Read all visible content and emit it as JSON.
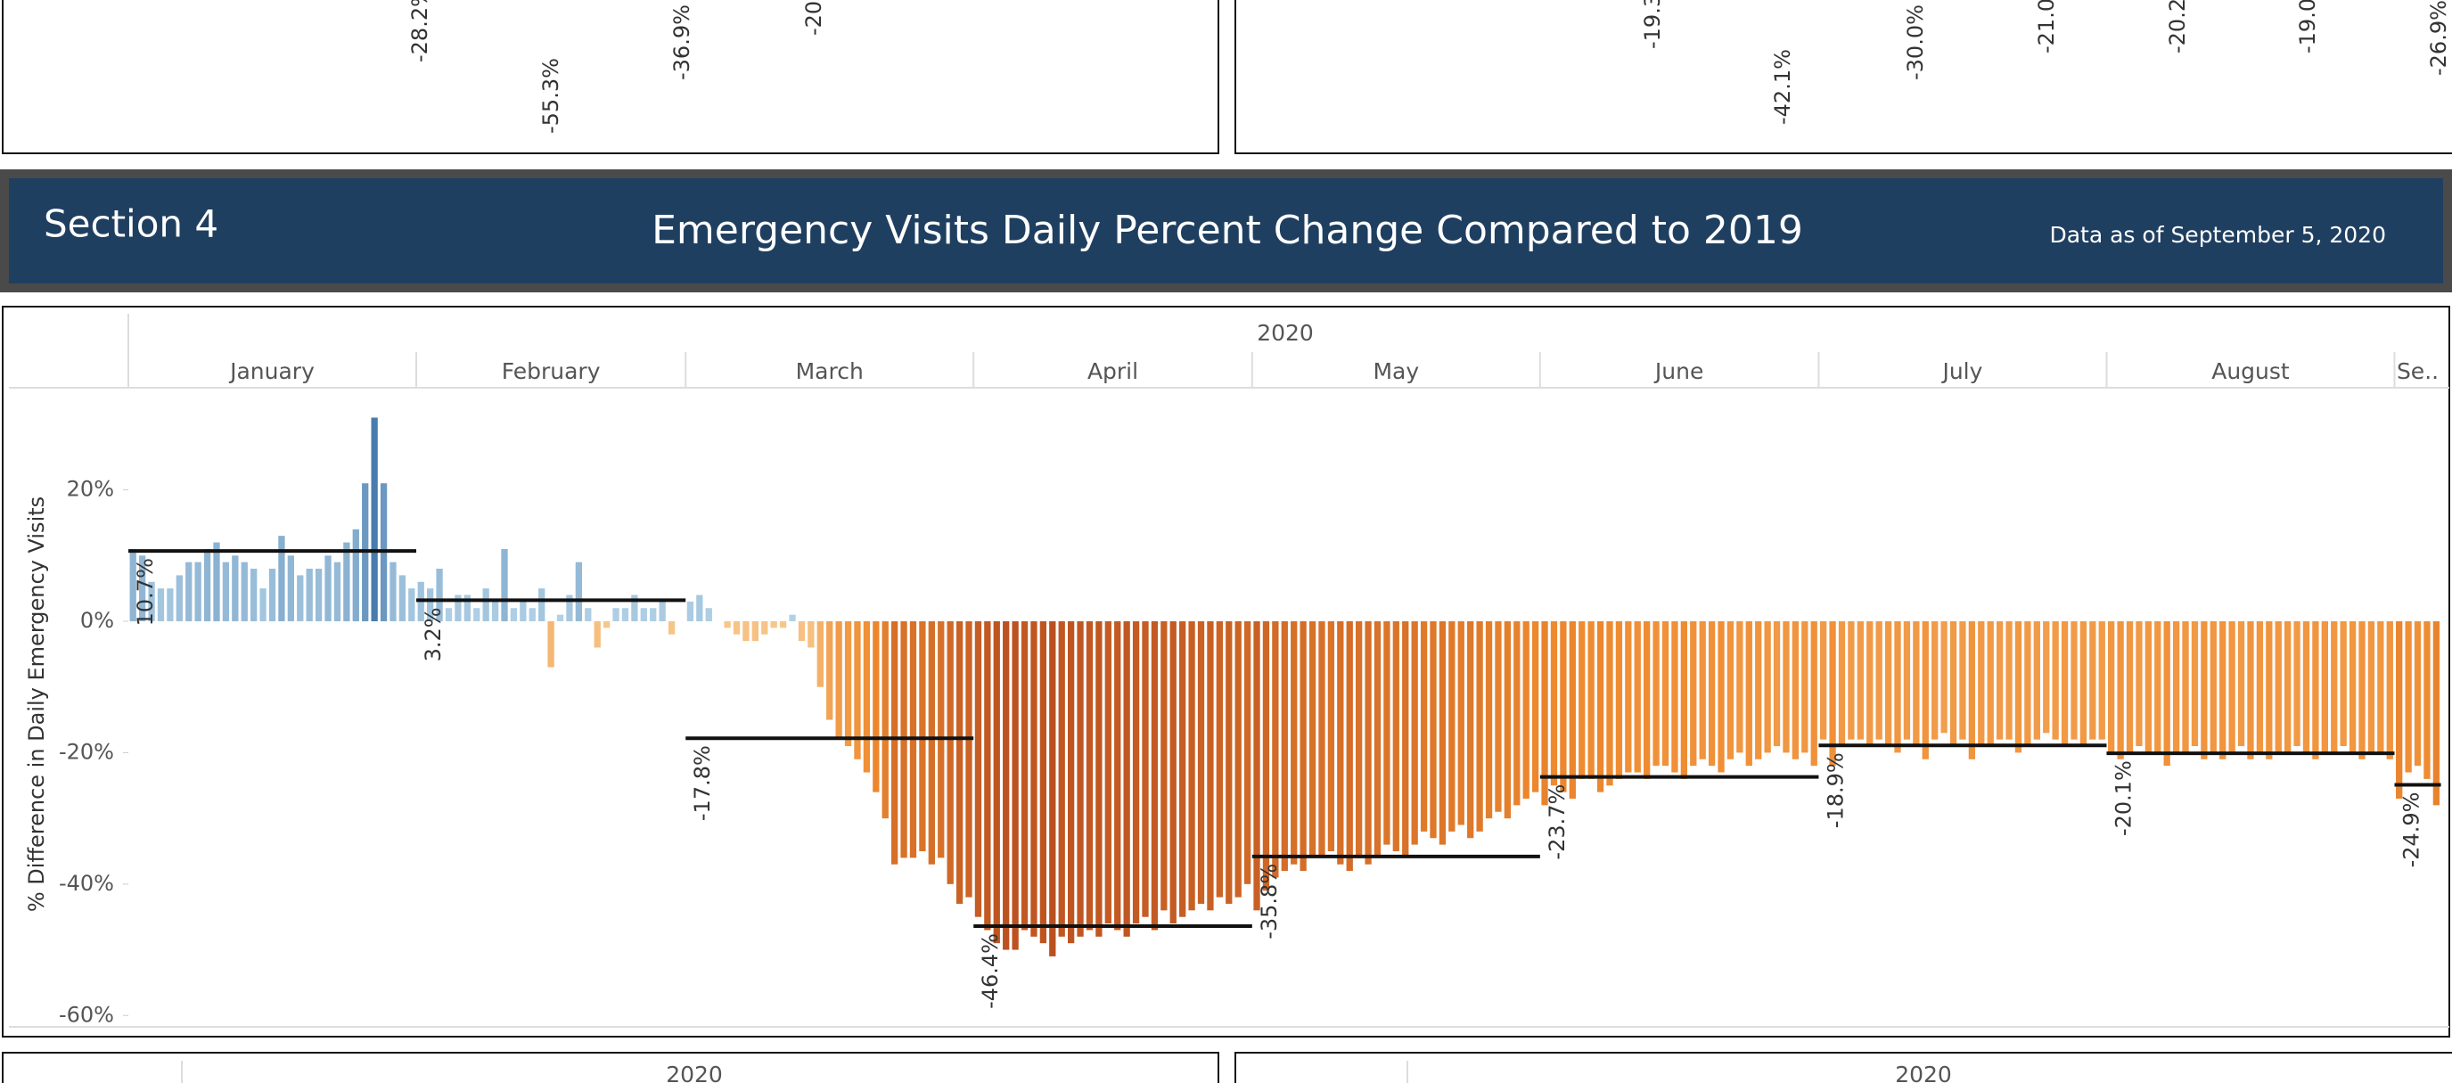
{
  "header": {
    "section": "Section 4",
    "title": "Emergency Visits Daily Percent Change  Compared to 2019",
    "date_note": "Data as of September 5, 2020"
  },
  "top_panels": [
    {
      "labels": [
        "-28.2%",
        "-55.3%",
        "-36.9%",
        "-20."
      ]
    },
    {
      "labels": [
        "-19.3",
        "-42.1%",
        "-30.0%",
        "-21.0",
        "-20.2",
        "-19.0",
        "-26.9%"
      ]
    }
  ],
  "bottom_panels": [
    {
      "year": "2020"
    },
    {
      "year": "2020"
    }
  ],
  "chart_data": {
    "type": "bar",
    "year": "2020",
    "y_label": "% Difference in Daily Emergency Visits",
    "ylim": [
      -62,
      35
    ],
    "yticks": [
      {
        "value": 20,
        "label": "20%"
      },
      {
        "value": 0,
        "label": "0%"
      },
      {
        "value": -20,
        "label": "-20%"
      },
      {
        "value": -40,
        "label": "-40%"
      },
      {
        "value": -60,
        "label": "-60%"
      }
    ],
    "colors": {
      "positive_light": "#b4d4e8",
      "positive_dark": "#3a70a6",
      "negative_light": "#f7c98e",
      "negative_mid": "#ef8a2f",
      "negative_dark": "#a3381a",
      "average_line": "#111111"
    },
    "months": [
      {
        "name": "January",
        "average": 10.7,
        "average_label": "10.7%",
        "values": [
          11,
          10,
          6,
          5,
          5,
          7,
          9,
          9,
          11,
          12,
          9,
          10,
          9,
          8,
          5,
          8,
          13,
          10,
          7,
          8,
          8,
          10,
          9,
          12,
          14,
          21,
          31,
          21,
          9,
          7,
          5
        ]
      },
      {
        "name": "February",
        "average": 3.2,
        "average_label": "3.2%",
        "values": [
          6,
          5,
          8,
          2,
          4,
          4,
          2,
          5,
          3,
          11,
          2,
          3,
          2,
          5,
          -7,
          1,
          4,
          9,
          2,
          -4,
          -1,
          2,
          2,
          4,
          2,
          2,
          3,
          -2,
          0
        ]
      },
      {
        "name": "March",
        "average": -17.8,
        "average_label": "-17.8%",
        "values": [
          3,
          4,
          2,
          0,
          -1,
          -2,
          -3,
          -3,
          -2,
          -1,
          -1,
          1,
          -3,
          -4,
          -10,
          -15,
          -18,
          -19,
          -21,
          -23,
          -26,
          -30,
          -37,
          -36,
          -36,
          -35,
          -37,
          -36,
          -40,
          -43,
          -42
        ]
      },
      {
        "name": "April",
        "average": -46.4,
        "average_label": "-46.4%",
        "values": [
          -45,
          -47,
          -49,
          -50,
          -50,
          -47,
          -48,
          -49,
          -51,
          -48,
          -49,
          -48,
          -47,
          -48,
          -46,
          -47,
          -48,
          -46,
          -45,
          -47,
          -44,
          -46,
          -45,
          -44,
          -43,
          -44,
          -42,
          -43,
          -42,
          -40
        ]
      },
      {
        "name": "May",
        "average": -35.8,
        "average_label": "-35.8%",
        "values": [
          -44,
          -41,
          -39,
          -38,
          -37,
          -38,
          -36,
          -36,
          -35,
          -37,
          -38,
          -36,
          -37,
          -36,
          -34,
          -35,
          -36,
          -34,
          -32,
          -33,
          -34,
          -32,
          -31,
          -33,
          -32,
          -30,
          -29,
          -30,
          -28,
          -27,
          -26
        ]
      },
      {
        "name": "June",
        "average": -23.7,
        "average_label": "-23.7%",
        "values": [
          -28,
          -25,
          -26,
          -27,
          -24,
          -24,
          -26,
          -25,
          -24,
          -23,
          -23,
          -24,
          -22,
          -22,
          -23,
          -24,
          -22,
          -21,
          -22,
          -23,
          -21,
          -20,
          -22,
          -21,
          -20,
          -19,
          -20,
          -21,
          -20,
          -22
        ]
      },
      {
        "name": "July",
        "average": -18.9,
        "average_label": "-18.9%",
        "values": [
          -18,
          -22,
          -19,
          -18,
          -18,
          -19,
          -18,
          -19,
          -20,
          -18,
          -19,
          -21,
          -18,
          -17,
          -19,
          -18,
          -21,
          -19,
          -19,
          -18,
          -18,
          -20,
          -19,
          -18,
          -17,
          -18,
          -19,
          -18,
          -19,
          -18,
          -18
        ]
      },
      {
        "name": "August",
        "average": -20.1,
        "average_label": "-20.1%",
        "values": [
          -20,
          -21,
          -20,
          -19,
          -20,
          -20,
          -22,
          -20,
          -20,
          -19,
          -21,
          -20,
          -21,
          -20,
          -19,
          -21,
          -20,
          -21,
          -20,
          -20,
          -19,
          -20,
          -21,
          -20,
          -20,
          -19,
          -20,
          -21,
          -20,
          -20,
          -21
        ]
      },
      {
        "name": "Se..",
        "average": -24.9,
        "average_label": "-24.9%",
        "values": [
          -27,
          -23,
          -22,
          -24,
          -28
        ]
      }
    ]
  }
}
